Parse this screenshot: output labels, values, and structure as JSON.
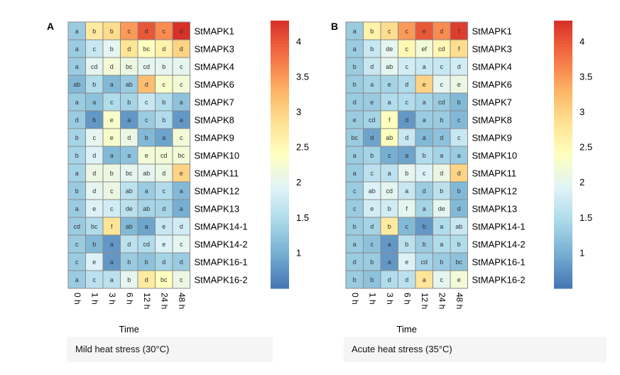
{
  "chart_data": [
    {
      "type": "heatmap",
      "panel_label": "A",
      "caption": "Mild heat stress (30°C)",
      "xlabel": "Time",
      "x": [
        "0 h",
        "1 h",
        "3 h",
        "6 h",
        "12 h",
        "24 h",
        "48 h"
      ],
      "y": [
        "StMAPK1",
        "StMAPK3",
        "StMAPK4",
        "StMAPK6",
        "StMAPK7",
        "StMAPK8",
        "StMAPK9",
        "StMAPK10",
        "StMAPK11",
        "StMAPK12",
        "StMAPK13",
        "StMAPK14-1",
        "StMAPK14-2",
        "StMAPK16-1",
        "StMAPK16-2"
      ],
      "values": [
        [
          1.3,
          2.7,
          2.9,
          3.5,
          4.0,
          3.6,
          4.3
        ],
        [
          1.3,
          1.7,
          2.0,
          2.8,
          2.4,
          2.6,
          3.0
        ],
        [
          1.3,
          2.0,
          2.2,
          2.1,
          2.0,
          2.0,
          2.0
        ],
        [
          1.1,
          1.5,
          1.1,
          1.3,
          3.2,
          2.3,
          2.2
        ],
        [
          1.3,
          1.2,
          1.5,
          1.4,
          1.7,
          1.5,
          1.2
        ],
        [
          1.3,
          0.8,
          2.3,
          0.8,
          1.3,
          1.5,
          0.8
        ],
        [
          1.4,
          2.0,
          2.3,
          2.1,
          1.1,
          0.9,
          2.2
        ],
        [
          1.4,
          1.9,
          1.1,
          1.2,
          2.2,
          2.2,
          2.2
        ],
        [
          1.4,
          2.1,
          2.1,
          2.0,
          2.0,
          2.1,
          3.0
        ],
        [
          1.3,
          2.0,
          2.1,
          1.6,
          1.3,
          1.5,
          1.1
        ],
        [
          1.3,
          1.9,
          1.8,
          1.6,
          1.4,
          1.4,
          1.0
        ],
        [
          1.3,
          1.5,
          2.8,
          1.1,
          0.9,
          1.7,
          1.8
        ],
        [
          1.3,
          1.1,
          0.8,
          1.6,
          1.5,
          1.9,
          2.0
        ],
        [
          1.3,
          1.9,
          0.8,
          1.3,
          1.2,
          1.4,
          1.3
        ],
        [
          1.3,
          1.6,
          1.6,
          2.0,
          2.7,
          2.4,
          2.1
        ]
      ],
      "labels": [
        [
          "a",
          "b",
          "b",
          "c",
          "d",
          "c",
          "d"
        ],
        [
          "a",
          "c",
          "b",
          "d",
          "bc",
          "d",
          "d"
        ],
        [
          "a",
          "cd",
          "d",
          "bc",
          "cd",
          "b",
          "c"
        ],
        [
          "ab",
          "b",
          "a",
          "ab",
          "d",
          "c",
          "c"
        ],
        [
          "a",
          "a",
          "c",
          "b",
          "c",
          "b",
          "a"
        ],
        [
          "d",
          "b",
          "e",
          "a",
          "c",
          "b",
          "a"
        ],
        [
          "b",
          "c",
          "e",
          "d",
          "b",
          "a",
          "c"
        ],
        [
          "b",
          "d",
          "a",
          "a",
          "e",
          "cd",
          "bc"
        ],
        [
          "a",
          "d",
          "b",
          "bc",
          "ab",
          "d",
          "e"
        ],
        [
          "b",
          "d",
          "c",
          "ab",
          "a",
          "c",
          "a"
        ],
        [
          "a",
          "e",
          "c",
          "de",
          "ab",
          "d",
          "a"
        ],
        [
          "cd",
          "bc",
          "f",
          "ab",
          "a",
          "e",
          "d"
        ],
        [
          "c",
          "b",
          "a",
          "d",
          "cd",
          "e",
          "c"
        ],
        [
          "c",
          "e",
          "a",
          "b",
          "b",
          "d",
          "d"
        ],
        [
          "a",
          "c",
          "a",
          "b",
          "d",
          "bc",
          "c"
        ]
      ],
      "colorbar": {
        "min": 0.5,
        "max": 4.3,
        "ticks": [
          1,
          1.5,
          2,
          2.5,
          3,
          3.5,
          4
        ]
      }
    },
    {
      "type": "heatmap",
      "panel_label": "B",
      "caption": "Acute heat stress (35°C)",
      "xlabel": "Time",
      "x": [
        "0 h",
        "1 h",
        "3 h",
        "6 h",
        "12 h",
        "24 h",
        "48 h"
      ],
      "y": [
        "StMAPK1",
        "StMAPK3",
        "StMAPK4",
        "StMAPK6",
        "StMAPK7",
        "StMAPK8",
        "StMAPK9",
        "StMAPK10",
        "StMAPK11",
        "StMAPK12",
        "StMAPK13",
        "StMAPK14-1",
        "StMAPK14-2",
        "StMAPK16-1",
        "StMAPK16-2"
      ],
      "values": [
        [
          1.3,
          2.6,
          2.9,
          3.5,
          4.0,
          3.6,
          4.2
        ],
        [
          1.3,
          1.7,
          2.0,
          2.5,
          2.2,
          2.5,
          2.9
        ],
        [
          1.3,
          1.7,
          2.0,
          1.8,
          1.7,
          1.7,
          1.8
        ],
        [
          1.3,
          1.4,
          1.4,
          1.5,
          3.0,
          2.0,
          2.1
        ],
        [
          1.3,
          1.3,
          1.5,
          1.5,
          1.4,
          1.3,
          1.1
        ],
        [
          1.3,
          1.4,
          2.4,
          0.8,
          1.3,
          1.3,
          1.1
        ],
        [
          1.3,
          0.9,
          2.4,
          1.7,
          1.1,
          1.2,
          1.7
        ],
        [
          1.3,
          1.4,
          1.0,
          0.9,
          1.5,
          1.4,
          1.3
        ],
        [
          1.3,
          1.6,
          1.6,
          2.0,
          1.9,
          2.1,
          3.0
        ],
        [
          1.3,
          1.9,
          2.0,
          1.7,
          1.3,
          1.6,
          1.1
        ],
        [
          1.3,
          1.8,
          1.8,
          2.0,
          1.4,
          2.0,
          1.1
        ],
        [
          1.3,
          1.4,
          2.7,
          1.1,
          0.8,
          1.5,
          1.7
        ],
        [
          1.3,
          1.2,
          0.8,
          1.6,
          1.3,
          1.5,
          1.5
        ],
        [
          1.3,
          1.3,
          0.8,
          1.9,
          1.4,
          1.3,
          1.2
        ],
        [
          1.3,
          1.2,
          1.5,
          1.6,
          2.8,
          2.0,
          2.2
        ]
      ],
      "labels": [
        [
          "a",
          "b",
          "c",
          "c",
          "e",
          "d",
          "f"
        ],
        [
          "a",
          "b",
          "de",
          "c",
          "ef",
          "cd",
          "f"
        ],
        [
          "b",
          "d",
          "ab",
          "c",
          "a",
          "c",
          "d"
        ],
        [
          "b",
          "a",
          "e",
          "d",
          "e",
          "c",
          "e"
        ],
        [
          "d",
          "e",
          "a",
          "c",
          "a",
          "cd",
          "b"
        ],
        [
          "e",
          "cd",
          "f",
          "d",
          "a",
          "b",
          "c"
        ],
        [
          "bc",
          "d",
          "ab",
          "d",
          "a",
          "d",
          "c"
        ],
        [
          "a",
          "b",
          "c",
          "a",
          "b",
          "a",
          "a"
        ],
        [
          "a",
          "c",
          "a",
          "b",
          "c",
          "d",
          "d"
        ],
        [
          "c",
          "ab",
          "cd",
          "a",
          "d",
          "b",
          "b"
        ],
        [
          "c",
          "e",
          "b",
          "f",
          "a",
          "de",
          "d"
        ],
        [
          "b",
          "d",
          "b",
          "c",
          "b",
          "a",
          "ab"
        ],
        [
          "a",
          "c",
          "a",
          "b",
          "b",
          "a",
          "b"
        ],
        [
          "d",
          "b",
          "a",
          "e",
          "cd",
          "b",
          "bc"
        ],
        [
          "b",
          "b",
          "d",
          "d",
          "a",
          "c",
          "e"
        ]
      ],
      "colorbar": {
        "min": 0.5,
        "max": 4.3,
        "ticks": [
          1,
          1.5,
          2,
          2.5,
          3,
          3.5,
          4
        ]
      }
    }
  ],
  "colors": {
    "scale": [
      "#4575b4",
      "#74add1",
      "#abd9e9",
      "#e0f3f8",
      "#ffffbf",
      "#fee090",
      "#fdae61",
      "#f46d43",
      "#d73027"
    ],
    "cell_border": "#8a8a8a",
    "caption_background": "#f5f5f5"
  }
}
